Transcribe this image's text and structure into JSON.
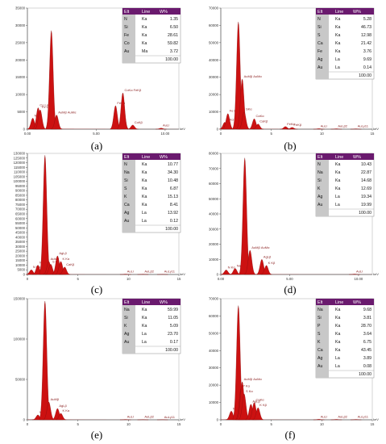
{
  "colors": {
    "spectrum": "#cc1111",
    "peak_label": "#8a1f1f",
    "table_header": "#6a1a6e",
    "table_elt_col": "#c8c8c8",
    "axis": "#555555",
    "ca_band": "#f2b8c0"
  },
  "chart_data": [
    {
      "id": "a",
      "caption": "(a)",
      "type": "line",
      "x_ticks": [
        "0.00",
        "5.00",
        "10.00"
      ],
      "x_unit": "keV",
      "y_ticks": [
        "0",
        "5000",
        "10000",
        "15000",
        "20000",
        "25000",
        "30000",
        "35000"
      ],
      "ylim": [
        0,
        35000
      ],
      "xlim": [
        0,
        11
      ],
      "peaks": [
        {
          "x": 0.39,
          "y": 3200,
          "label": "N Kα"
        },
        {
          "x": 0.78,
          "y": 6200,
          "label": "Co Lα"
        },
        {
          "x": 0.93,
          "y": 5600,
          "label": "Fe Lα"
        },
        {
          "x": 1.74,
          "y": 28500,
          "label": ""
        },
        {
          "x": 2.12,
          "y": 4100,
          "label": "AuMβ AuMα"
        },
        {
          "x": 6.4,
          "y": 6800,
          "label": "FeKα"
        },
        {
          "x": 6.93,
          "y": 10500,
          "label": "CoKα FeKβ"
        },
        {
          "x": 7.65,
          "y": 1200,
          "label": "CoKβ"
        },
        {
          "x": 9.71,
          "y": 300,
          "label": "AuLl"
        }
      ],
      "table": {
        "headers": [
          "Elt",
          "Line",
          "W%"
        ],
        "rows": [
          [
            "N",
            "Ka",
            "1.35"
          ],
          [
            "Si",
            "Ka",
            "6.50"
          ],
          [
            "Fe",
            "Ka",
            "28.61"
          ],
          [
            "Co",
            "Ka",
            "59.82"
          ],
          [
            "Au",
            "Ma",
            "3.72"
          ]
        ],
        "total": "100.00"
      }
    },
    {
      "id": "b",
      "caption": "(b)",
      "type": "line",
      "x_ticks": [
        "0",
        "5",
        "10",
        "15"
      ],
      "x_unit": "keV",
      "y_ticks": [
        "0",
        "10000",
        "20000",
        "30000",
        "40000",
        "50000",
        "60000",
        "70000"
      ],
      "ylim": [
        0,
        70000
      ],
      "xlim": [
        0,
        15
      ],
      "peaks": [
        {
          "x": 0.39,
          "y": 4000,
          "label": "N Kα"
        },
        {
          "x": 0.7,
          "y": 9000,
          "label": "Fe Lα"
        },
        {
          "x": 1.74,
          "y": 62000,
          "label": ""
        },
        {
          "x": 2.12,
          "y": 29000,
          "label": "AuMβ AuMα"
        },
        {
          "x": 2.31,
          "y": 10000,
          "label": "SKα"
        },
        {
          "x": 3.31,
          "y": 6000,
          "label": "CaKα"
        },
        {
          "x": 3.69,
          "y": 3000,
          "label": "CaKβ"
        },
        {
          "x": 6.4,
          "y": 1500,
          "label": "FeKα"
        },
        {
          "x": 7.06,
          "y": 1000,
          "label": "FeKβ"
        },
        {
          "x": 9.71,
          "y": 300,
          "label": "AuLl"
        },
        {
          "x": 11.44,
          "y": 250,
          "label": "AuLβ2"
        },
        {
          "x": 13.38,
          "y": 200,
          "label": "AuLγ11"
        }
      ],
      "table": {
        "headers": [
          "Elt",
          "Line",
          "W%"
        ],
        "rows": [
          [
            "N",
            "Ka",
            "5.28"
          ],
          [
            "Si",
            "Ka",
            "46.73"
          ],
          [
            "S",
            "Ka",
            "12.98"
          ],
          [
            "Ca",
            "Ka",
            "21.42"
          ],
          [
            "Fe",
            "Ka",
            "3.76"
          ],
          [
            "Ag",
            "La",
            "9.69"
          ],
          [
            "Au",
            "La",
            "0.14"
          ]
        ],
        "total": "100.00"
      }
    },
    {
      "id": "c",
      "caption": "(c)",
      "type": "line",
      "x_ticks": [
        "0",
        "5",
        "10",
        "15"
      ],
      "x_unit": "keV",
      "y_ticks": [
        "0",
        "5000",
        "10000",
        "15000",
        "20000",
        "25000",
        "30000",
        "35000",
        "40000",
        "45000",
        "50000",
        "55000",
        "60000",
        "65000",
        "70000",
        "75000",
        "80000",
        "85000",
        "90000",
        "95000",
        "100000",
        "105000",
        "110000",
        "115000",
        "120000",
        "125000",
        "130000"
      ],
      "ylim": [
        0,
        130000
      ],
      "xlim": [
        0,
        15
      ],
      "peaks": [
        {
          "x": 0.39,
          "y": 5000,
          "label": "N Kα"
        },
        {
          "x": 1.04,
          "y": 10000,
          "label": "NaKα"
        },
        {
          "x": 1.74,
          "y": 128000,
          "label": ""
        },
        {
          "x": 2.12,
          "y": 14000,
          "label": "AuMα"
        },
        {
          "x": 2.31,
          "y": 11000,
          "label": "S Kα"
        },
        {
          "x": 2.98,
          "y": 20000,
          "label": "AgLβ"
        },
        {
          "x": 3.31,
          "y": 14000,
          "label": "K Kα"
        },
        {
          "x": 3.69,
          "y": 8000,
          "label": "CaKβ"
        },
        {
          "x": 9.71,
          "y": 400,
          "label": "AuLl"
        },
        {
          "x": 11.44,
          "y": 300,
          "label": "AuLβ2"
        },
        {
          "x": 13.38,
          "y": 250,
          "label": "AuLγ11"
        }
      ],
      "table": {
        "headers": [
          "Elt",
          "Line",
          "W%"
        ],
        "rows": [
          [
            "N",
            "Ka",
            "10.77"
          ],
          [
            "Na",
            "Ka",
            "34.30"
          ],
          [
            "Si",
            "Ka",
            "10.48"
          ],
          [
            "S",
            "Ka",
            "6.87"
          ],
          [
            "K",
            "Ka",
            "15.13"
          ],
          [
            "Ca",
            "Ka",
            "8.41"
          ],
          [
            "Ag",
            "La",
            "13.92"
          ],
          [
            "Au",
            "La",
            "0.12"
          ]
        ],
        "total": "100.00"
      }
    },
    {
      "id": "d",
      "caption": "(d)",
      "type": "line",
      "x_ticks": [
        "0.00",
        "5.00",
        "10.00"
      ],
      "x_unit": "keV",
      "y_ticks": [
        "0",
        "10000",
        "20000",
        "30000",
        "40000",
        "50000",
        "60000",
        "70000",
        "80000"
      ],
      "ylim": [
        0,
        80000
      ],
      "xlim": [
        0,
        11
      ],
      "peaks": [
        {
          "x": 0.39,
          "y": 3000,
          "label": "N Kα"
        },
        {
          "x": 1.04,
          "y": 4000,
          "label": "NaKα"
        },
        {
          "x": 1.74,
          "y": 77000,
          "label": ""
        },
        {
          "x": 2.12,
          "y": 16000,
          "label": "AuMβ AuMα"
        },
        {
          "x": 2.98,
          "y": 10000,
          "label": "AgLβ"
        },
        {
          "x": 3.31,
          "y": 6000,
          "label": "K Kβ"
        },
        {
          "x": 9.71,
          "y": 300,
          "label": "AuLl"
        }
      ],
      "table": {
        "headers": [
          "Elt",
          "Line",
          "W%"
        ],
        "rows": [
          [
            "N",
            "Ka",
            "10.43"
          ],
          [
            "Na",
            "Ka",
            "22.87"
          ],
          [
            "Si",
            "Ka",
            "14.68"
          ],
          [
            "K",
            "Ka",
            "12.69"
          ],
          [
            "Ag",
            "La",
            "19.34"
          ],
          [
            "Au",
            "La",
            "19.99"
          ]
        ],
        "total": "100.00"
      }
    },
    {
      "id": "e",
      "caption": "(e)",
      "type": "line",
      "x_ticks": [
        "0",
        "5",
        "10",
        "15"
      ],
      "x_unit": "keV",
      "y_ticks": [
        "0",
        "50000",
        "100000",
        "150000"
      ],
      "ylim": [
        0,
        150000
      ],
      "xlim": [
        0,
        15
      ],
      "peaks": [
        {
          "x": 1.04,
          "y": 6000,
          "label": "NaKα"
        },
        {
          "x": 1.74,
          "y": 147000,
          "label": ""
        },
        {
          "x": 2.12,
          "y": 22000,
          "label": "AuMβ"
        },
        {
          "x": 2.98,
          "y": 14000,
          "label": "AgLβ"
        },
        {
          "x": 3.31,
          "y": 8000,
          "label": "K Kα"
        },
        {
          "x": 9.71,
          "y": 400,
          "label": "AuLl"
        },
        {
          "x": 11.44,
          "y": 300,
          "label": "AuLβ2"
        },
        {
          "x": 13.38,
          "y": 250,
          "label": "AuLγ11"
        }
      ],
      "table": {
        "headers": [
          "Elt",
          "Line",
          "W%"
        ],
        "rows": [
          [
            "Na",
            "Ka",
            "59.99"
          ],
          [
            "Si",
            "Ka",
            "11.05"
          ],
          [
            "K",
            "Ka",
            "5.09"
          ],
          [
            "Ag",
            "La",
            "23.70"
          ],
          [
            "Au",
            "La",
            "0.17"
          ]
        ],
        "total": "100.00"
      }
    },
    {
      "id": "f",
      "caption": "(f)",
      "type": "line",
      "x_ticks": [
        "0",
        "5",
        "10",
        "15"
      ],
      "x_unit": "keV",
      "y_ticks": [
        "0",
        "10000",
        "20000",
        "30000",
        "40000",
        "50000",
        "60000",
        "70000"
      ],
      "ylim": [
        0,
        70000
      ],
      "xlim": [
        0,
        15
      ],
      "peaks": [
        {
          "x": 1.04,
          "y": 5000,
          "label": "NaKα"
        },
        {
          "x": 1.74,
          "y": 66000,
          "label": ""
        },
        {
          "x": 2.01,
          "y": 18000,
          "label": "P Kα"
        },
        {
          "x": 2.12,
          "y": 22000,
          "label": "AuMβ AuMα"
        },
        {
          "x": 2.31,
          "y": 15000,
          "label": "S Kα"
        },
        {
          "x": 2.98,
          "y": 9000,
          "label": "AgLβ"
        },
        {
          "x": 3.31,
          "y": 10000,
          "label": "CaKα"
        },
        {
          "x": 3.69,
          "y": 7000,
          "label": "K Kβ"
        },
        {
          "x": 9.71,
          "y": 300,
          "label": "AuLl"
        },
        {
          "x": 11.44,
          "y": 250,
          "label": "AuLβ2"
        },
        {
          "x": 13.38,
          "y": 200,
          "label": "AuLγ11"
        }
      ],
      "table": {
        "headers": [
          "Elt",
          "Line",
          "W%"
        ],
        "rows": [
          [
            "Na",
            "Ka",
            "9.68"
          ],
          [
            "Si",
            "Ka",
            "3.81"
          ],
          [
            "P",
            "Ka",
            "28.70"
          ],
          [
            "S",
            "Ka",
            "3.64"
          ],
          [
            "K",
            "Ka",
            "6.75"
          ],
          [
            "Ca",
            "Ka",
            "43.45"
          ],
          [
            "Ag",
            "La",
            "3.89"
          ],
          [
            "Au",
            "La",
            "0.08"
          ]
        ],
        "total": "100.00"
      }
    }
  ]
}
